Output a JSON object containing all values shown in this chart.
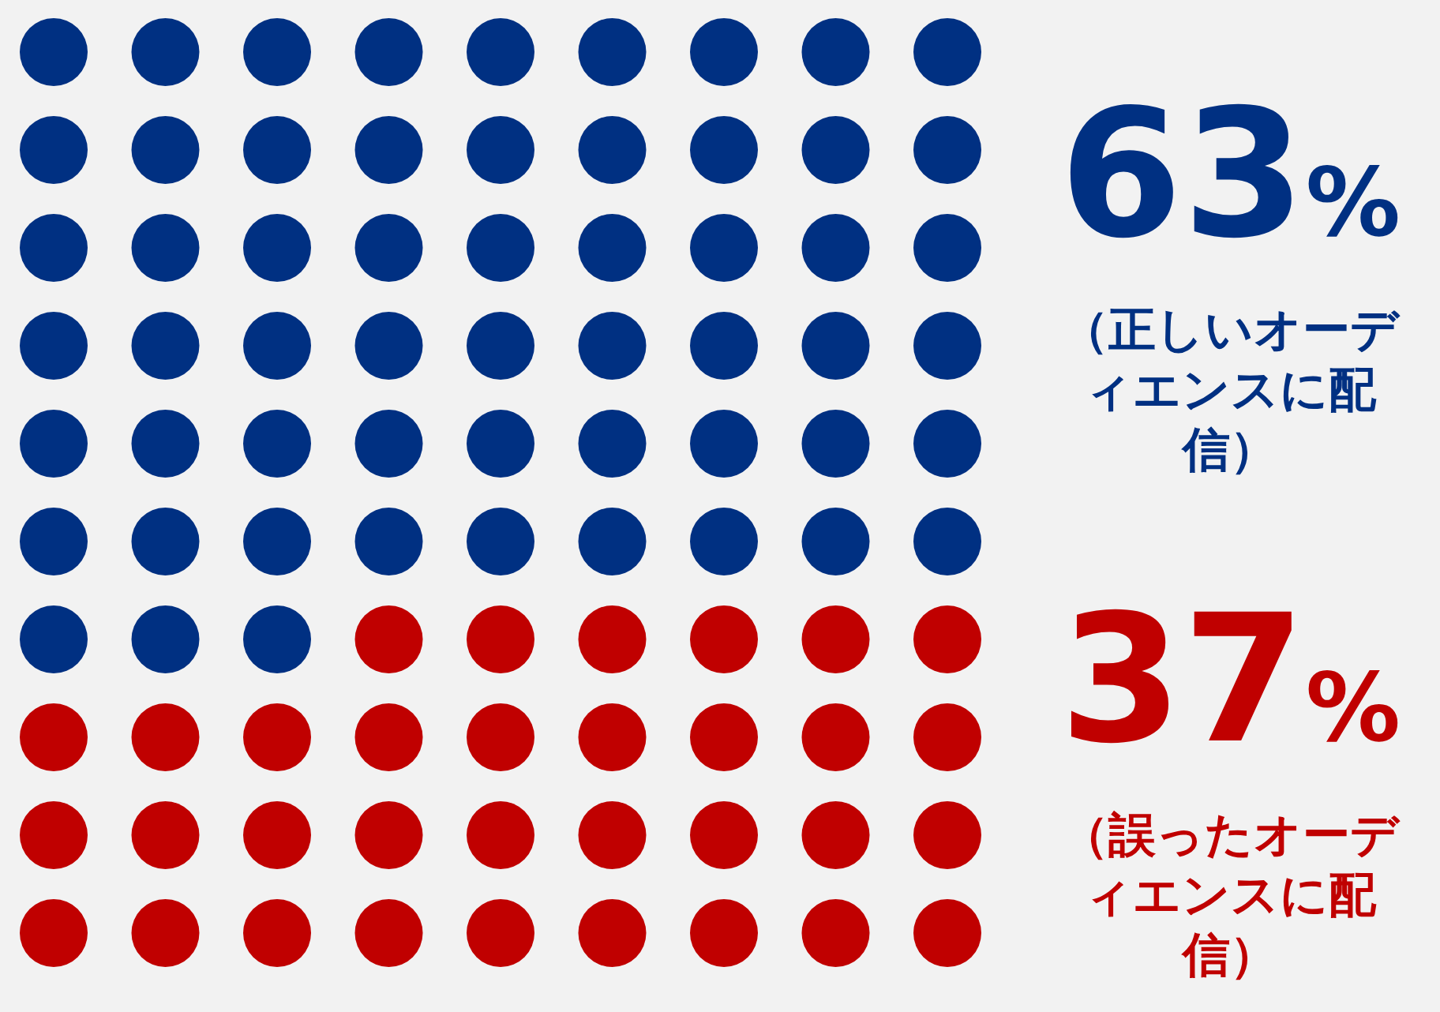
{
  "chart_data": {
    "type": "other",
    "categories": [
      "（正しいオーディエンスに配信）",
      "（誤ったオーディエンスに配信）"
    ],
    "values": [
      63,
      37
    ],
    "value_labels": [
      "63%",
      "37%"
    ],
    "colors": [
      "#003082",
      "#c00000"
    ]
  }
}
